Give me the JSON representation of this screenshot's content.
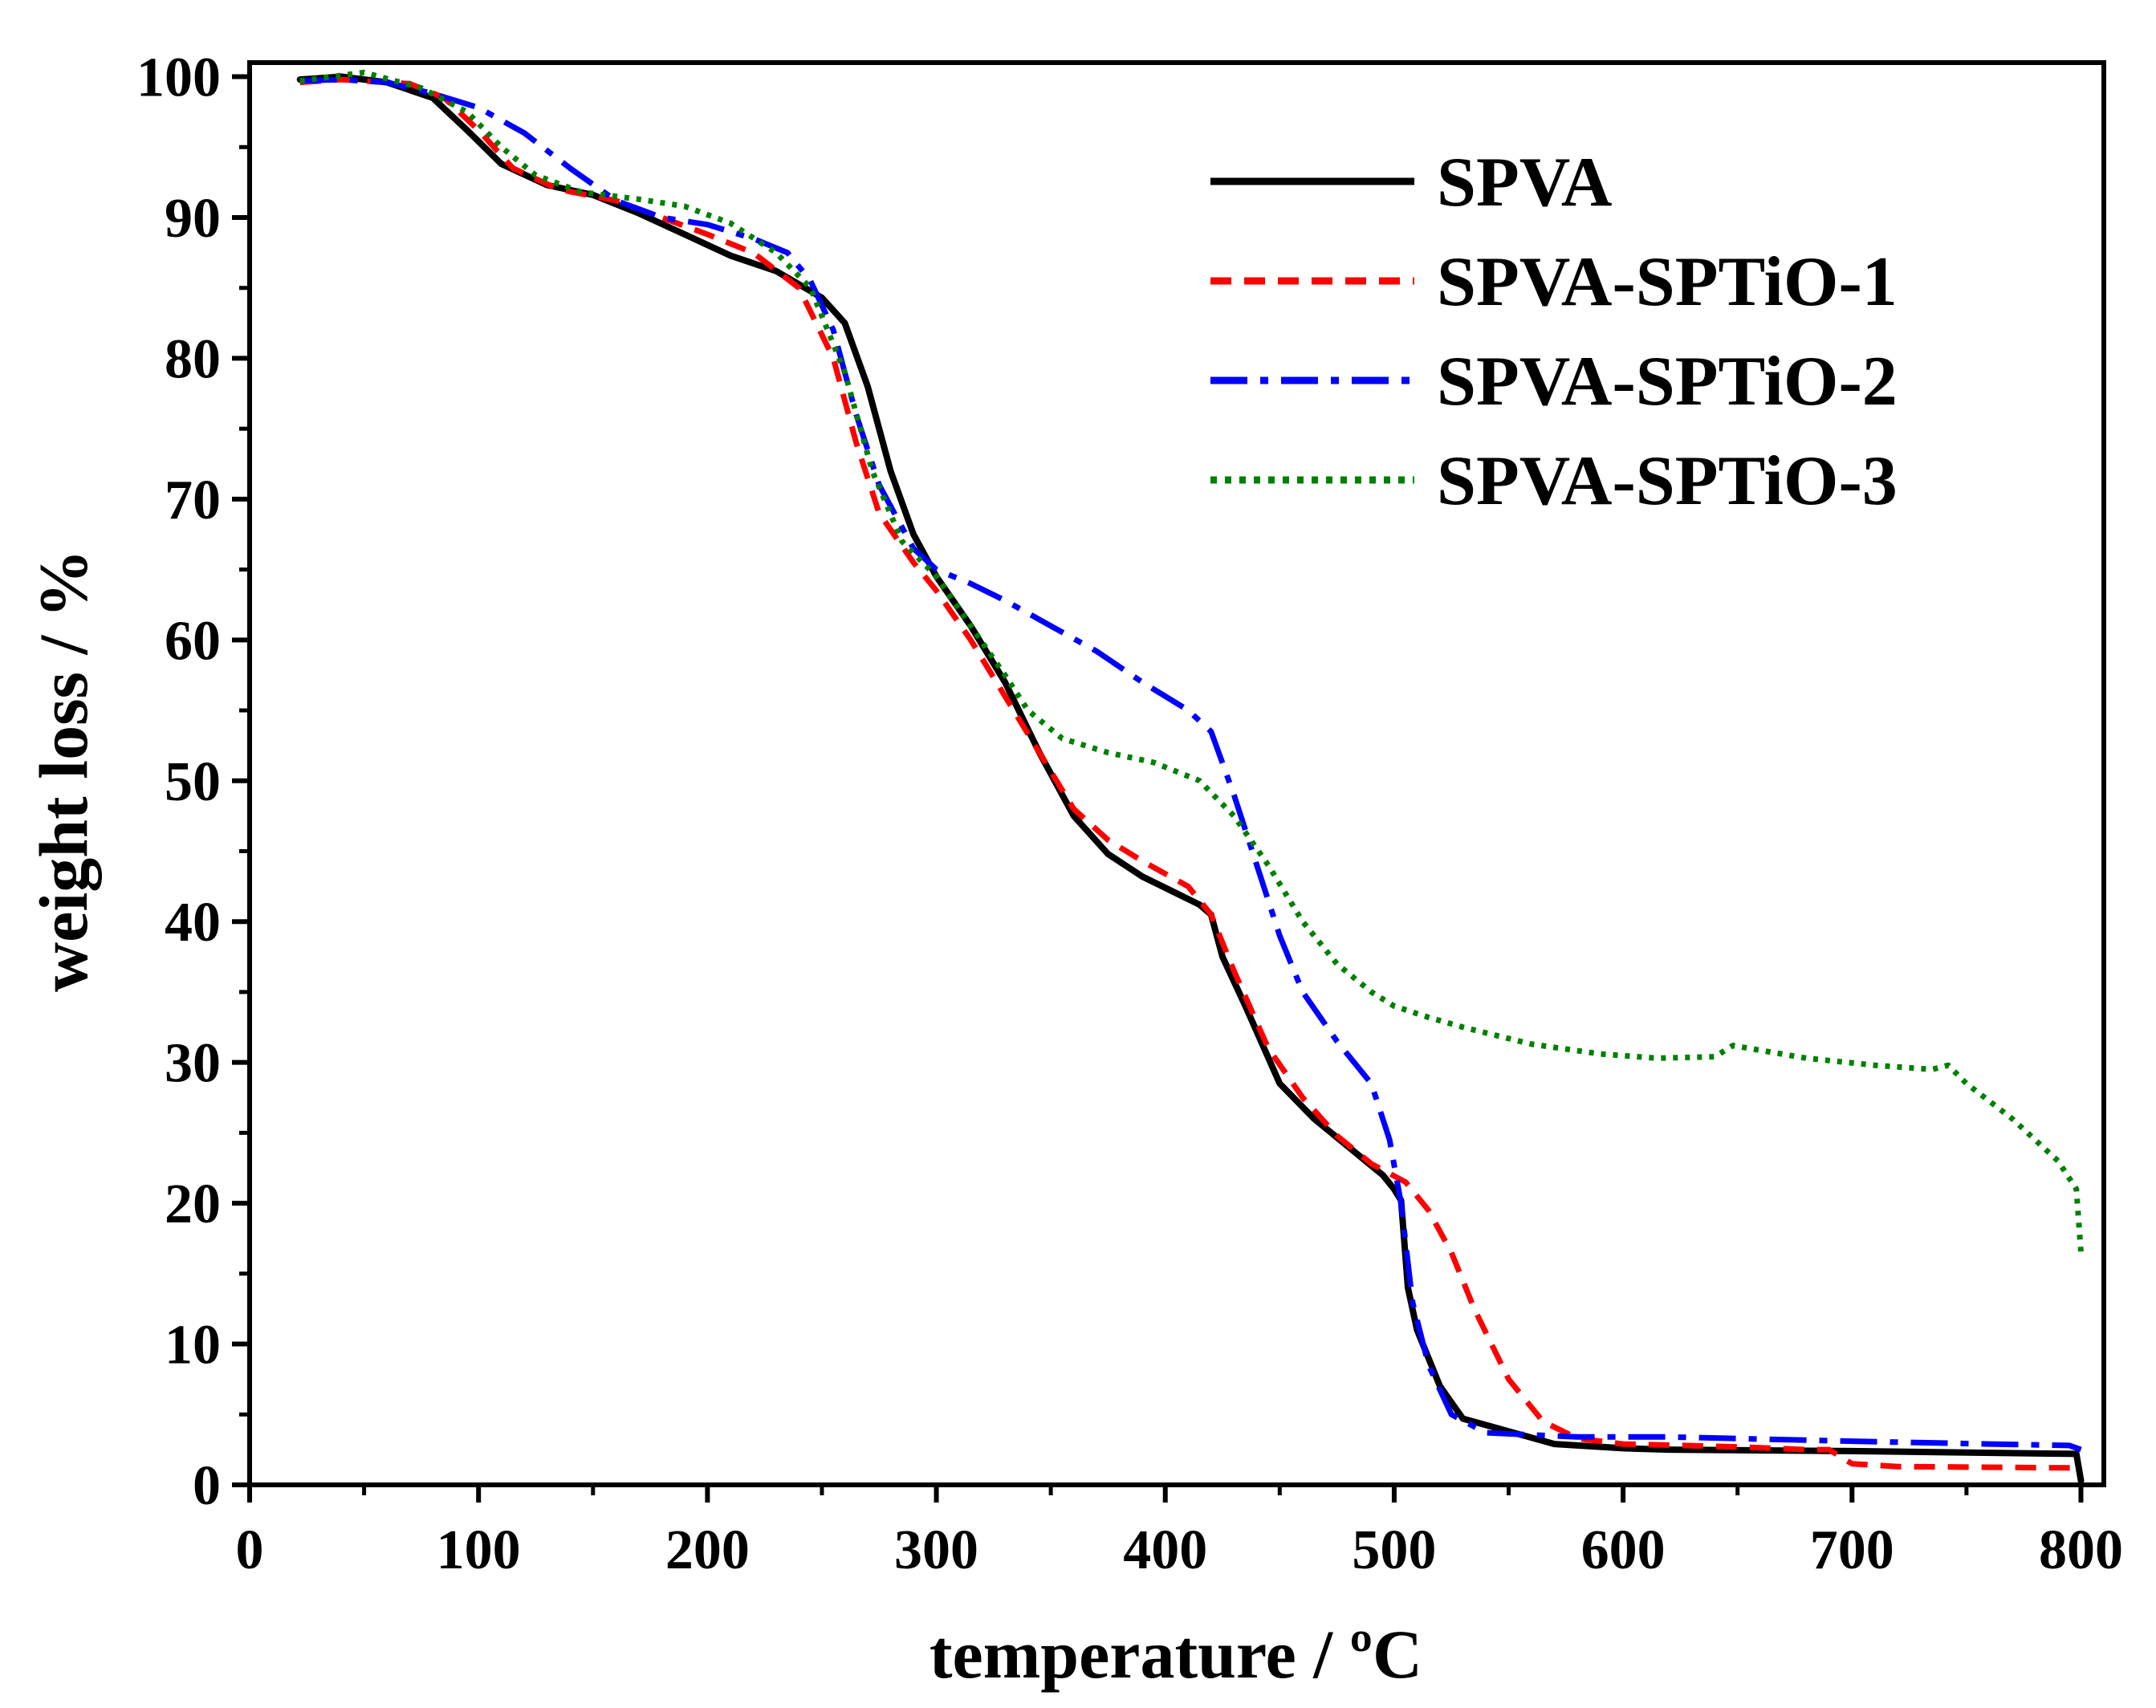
{
  "chart_data": {
    "type": "line",
    "title": "",
    "xlabel": "temperature / ",
    "xlabel_unit": "ºC",
    "ylabel": "weight loss / %",
    "xlim": [
      0,
      810
    ],
    "ylim": [
      0,
      101
    ],
    "x_ticks": [
      0,
      100,
      200,
      300,
      400,
      500,
      600,
      700,
      800
    ],
    "x_tick_labels": [
      "0",
      "100",
      "200",
      "300",
      "400",
      "500",
      "600",
      "700",
      "800"
    ],
    "y_ticks": [
      0,
      10,
      20,
      30,
      40,
      50,
      60,
      70,
      80,
      90,
      100
    ],
    "y_tick_labels": [
      "0",
      "10",
      "20",
      "30",
      "40",
      "50",
      "60",
      "70",
      "80",
      "90",
      "100"
    ],
    "grid": false,
    "legend_position": "top-right",
    "series": [
      {
        "name": "SPVA",
        "color": "#000000",
        "style": "solid",
        "points": [
          [
            22,
            99.8
          ],
          [
            40,
            100
          ],
          [
            60,
            99.6
          ],
          [
            80,
            98.5
          ],
          [
            95,
            96.2
          ],
          [
            110,
            93.8
          ],
          [
            130,
            92.3
          ],
          [
            150,
            91.6
          ],
          [
            170,
            90.3
          ],
          [
            190,
            88.8
          ],
          [
            210,
            87.3
          ],
          [
            230,
            86.2
          ],
          [
            250,
            84.3
          ],
          [
            260,
            82.5
          ],
          [
            270,
            78
          ],
          [
            280,
            72
          ],
          [
            290,
            67.5
          ],
          [
            300,
            64.5
          ],
          [
            315,
            61
          ],
          [
            330,
            57
          ],
          [
            345,
            52
          ],
          [
            360,
            47.5
          ],
          [
            375,
            44.8
          ],
          [
            390,
            43.2
          ],
          [
            405,
            42
          ],
          [
            415,
            41.2
          ],
          [
            420,
            40.5
          ],
          [
            425,
            37.5
          ],
          [
            435,
            34
          ],
          [
            450,
            28.5
          ],
          [
            465,
            26
          ],
          [
            480,
            24
          ],
          [
            495,
            22
          ],
          [
            500,
            21
          ],
          [
            503,
            20.2
          ],
          [
            506,
            14
          ],
          [
            510,
            11
          ],
          [
            520,
            7
          ],
          [
            530,
            4.7
          ],
          [
            550,
            3.8
          ],
          [
            570,
            2.9
          ],
          [
            600,
            2.6
          ],
          [
            620,
            2.5
          ],
          [
            700,
            2.4
          ],
          [
            798,
            2.2
          ],
          [
            800,
            0.3
          ]
        ]
      },
      {
        "name": "SPVA-SPTiO-1",
        "color": "#ff0000",
        "style": "dashed",
        "points": [
          [
            22,
            99.6
          ],
          [
            40,
            99.8
          ],
          [
            70,
            99.5
          ],
          [
            85,
            98.5
          ],
          [
            100,
            96.2
          ],
          [
            115,
            93.5
          ],
          [
            135,
            92
          ],
          [
            160,
            91.2
          ],
          [
            180,
            90
          ],
          [
            200,
            88.8
          ],
          [
            220,
            87.5
          ],
          [
            240,
            85
          ],
          [
            255,
            80
          ],
          [
            265,
            74
          ],
          [
            275,
            69
          ],
          [
            290,
            65.5
          ],
          [
            300,
            63.5
          ],
          [
            315,
            60
          ],
          [
            330,
            56
          ],
          [
            345,
            52
          ],
          [
            360,
            48
          ],
          [
            375,
            45.8
          ],
          [
            390,
            44.3
          ],
          [
            410,
            42.5
          ],
          [
            420,
            40.5
          ],
          [
            430,
            36.5
          ],
          [
            445,
            31
          ],
          [
            460,
            27.5
          ],
          [
            475,
            24.8
          ],
          [
            490,
            22.8
          ],
          [
            505,
            21.5
          ],
          [
            515,
            19.5
          ],
          [
            525,
            16.5
          ],
          [
            535,
            12.5
          ],
          [
            550,
            7.5
          ],
          [
            565,
            4.5
          ],
          [
            580,
            3.3
          ],
          [
            600,
            2.9
          ],
          [
            650,
            2.7
          ],
          [
            680,
            2.5
          ],
          [
            690,
            2.5
          ],
          [
            700,
            1.5
          ],
          [
            720,
            1.3
          ],
          [
            800,
            1.2
          ]
        ]
      },
      {
        "name": "SPVA-SPTiO-2",
        "color": "#0000ff",
        "style": "dashdot",
        "points": [
          [
            22,
            99.7
          ],
          [
            40,
            99.8
          ],
          [
            60,
            99.6
          ],
          [
            80,
            98.8
          ],
          [
            100,
            97.8
          ],
          [
            120,
            96
          ],
          [
            140,
            93.5
          ],
          [
            160,
            91.2
          ],
          [
            180,
            90
          ],
          [
            200,
            89.5
          ],
          [
            220,
            88.5
          ],
          [
            235,
            87.5
          ],
          [
            245,
            85.5
          ],
          [
            255,
            82
          ],
          [
            265,
            76
          ],
          [
            275,
            71
          ],
          [
            290,
            66.5
          ],
          [
            300,
            65
          ],
          [
            315,
            64
          ],
          [
            330,
            62.8
          ],
          [
            350,
            61
          ],
          [
            370,
            59.2
          ],
          [
            390,
            57
          ],
          [
            410,
            55
          ],
          [
            420,
            53.5
          ],
          [
            430,
            49
          ],
          [
            440,
            44
          ],
          [
            450,
            39
          ],
          [
            460,
            35
          ],
          [
            475,
            31.5
          ],
          [
            490,
            28.5
          ],
          [
            498,
            24.5
          ],
          [
            503,
            20
          ],
          [
            508,
            13
          ],
          [
            515,
            8.5
          ],
          [
            525,
            5
          ],
          [
            540,
            3.7
          ],
          [
            580,
            3.4
          ],
          [
            620,
            3.4
          ],
          [
            700,
            3.1
          ],
          [
            760,
            2.9
          ],
          [
            795,
            2.8
          ],
          [
            800,
            2.5
          ]
        ]
      },
      {
        "name": "SPVA-SPTiO-3",
        "color": "#008000",
        "style": "dotted",
        "points": [
          [
            22,
            99.7
          ],
          [
            50,
            100.3
          ],
          [
            75,
            99.2
          ],
          [
            95,
            97.5
          ],
          [
            110,
            95
          ],
          [
            125,
            93
          ],
          [
            145,
            91.8
          ],
          [
            170,
            91.3
          ],
          [
            190,
            90.8
          ],
          [
            210,
            89.6
          ],
          [
            230,
            87.5
          ],
          [
            245,
            85
          ],
          [
            260,
            79
          ],
          [
            272,
            72
          ],
          [
            285,
            67
          ],
          [
            300,
            64.5
          ],
          [
            315,
            61
          ],
          [
            330,
            57.5
          ],
          [
            340,
            55
          ],
          [
            355,
            53
          ],
          [
            375,
            52
          ],
          [
            395,
            51.3
          ],
          [
            415,
            50
          ],
          [
            430,
            47.5
          ],
          [
            445,
            44
          ],
          [
            460,
            40
          ],
          [
            475,
            37
          ],
          [
            490,
            35
          ],
          [
            500,
            34
          ],
          [
            515,
            33.2
          ],
          [
            530,
            32.5
          ],
          [
            560,
            31.3
          ],
          [
            590,
            30.6
          ],
          [
            615,
            30.3
          ],
          [
            640,
            30.4
          ],
          [
            648,
            31.2
          ],
          [
            655,
            31
          ],
          [
            680,
            30.3
          ],
          [
            710,
            29.8
          ],
          [
            735,
            29.5
          ],
          [
            742,
            29.8
          ],
          [
            750,
            28.5
          ],
          [
            770,
            26
          ],
          [
            790,
            23
          ],
          [
            798,
            21
          ],
          [
            800,
            16.5
          ]
        ]
      }
    ]
  }
}
